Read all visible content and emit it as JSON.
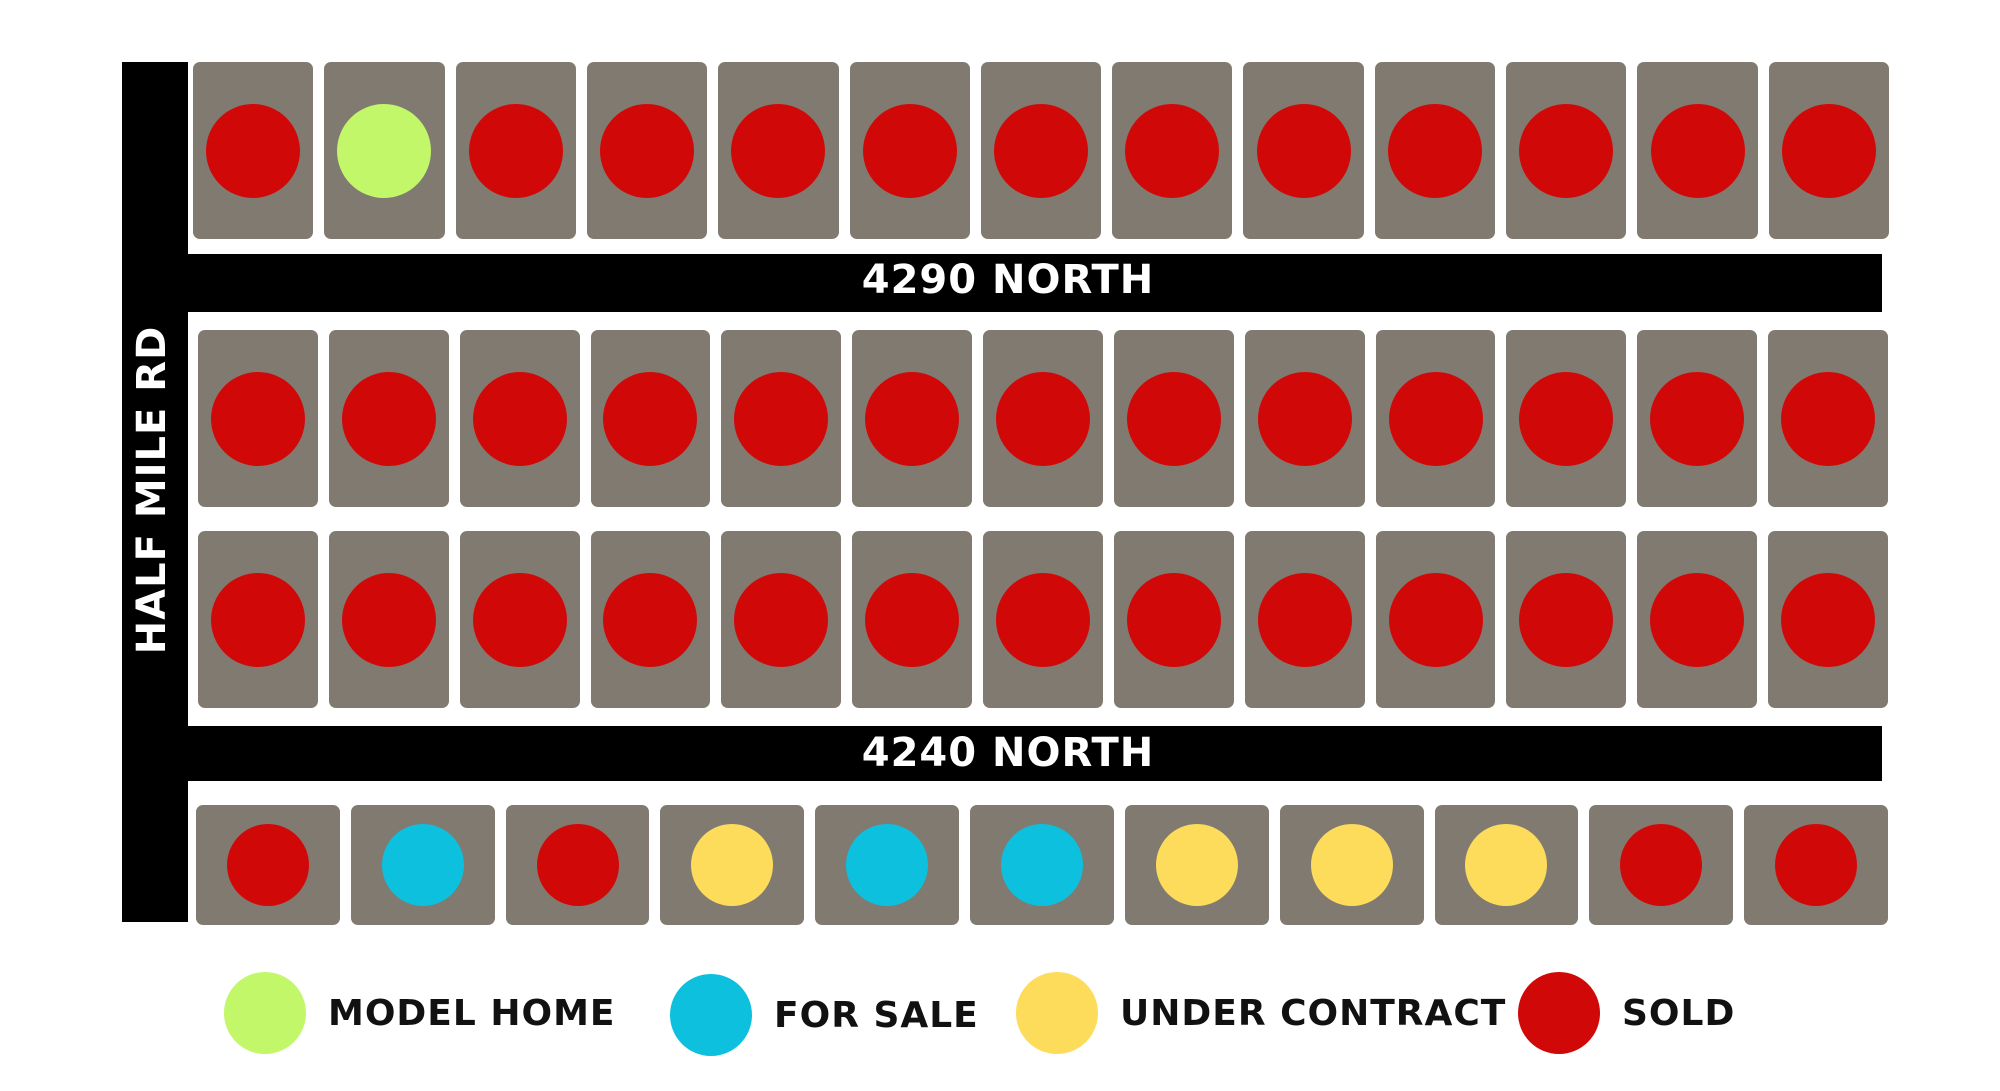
{
  "colors": {
    "lot": "#817a70",
    "road": "#000000",
    "model_home": "#c2f76a",
    "for_sale": "#0dc0de",
    "under_contract": "#fddc5c",
    "sold": "#d10808"
  },
  "roads": {
    "vertical_label": "HALF MILE RD",
    "top_label": "4290 NORTH",
    "bottom_label": "4240 NORTH"
  },
  "lot_rows": [
    {
      "row": "north-of-4290",
      "statuses": [
        "sold",
        "model_home",
        "sold",
        "sold",
        "sold",
        "sold",
        "sold",
        "sold",
        "sold",
        "sold",
        "sold",
        "sold",
        "sold"
      ]
    },
    {
      "row": "south-of-4290",
      "statuses": [
        "sold",
        "sold",
        "sold",
        "sold",
        "sold",
        "sold",
        "sold",
        "sold",
        "sold",
        "sold",
        "sold",
        "sold",
        "sold"
      ]
    },
    {
      "row": "north-of-4240",
      "statuses": [
        "sold",
        "sold",
        "sold",
        "sold",
        "sold",
        "sold",
        "sold",
        "sold",
        "sold",
        "sold",
        "sold",
        "sold",
        "sold"
      ]
    },
    {
      "row": "south-of-4240",
      "statuses": [
        "sold",
        "for_sale",
        "sold",
        "under_contract",
        "for_sale",
        "for_sale",
        "under_contract",
        "under_contract",
        "under_contract",
        "sold",
        "sold"
      ]
    }
  ],
  "legend": [
    {
      "status": "model_home",
      "label": "MODEL HOME"
    },
    {
      "status": "for_sale",
      "label": "FOR SALE"
    },
    {
      "status": "under_contract",
      "label": "UNDER CONTRACT"
    },
    {
      "status": "sold",
      "label": "SOLD"
    }
  ]
}
